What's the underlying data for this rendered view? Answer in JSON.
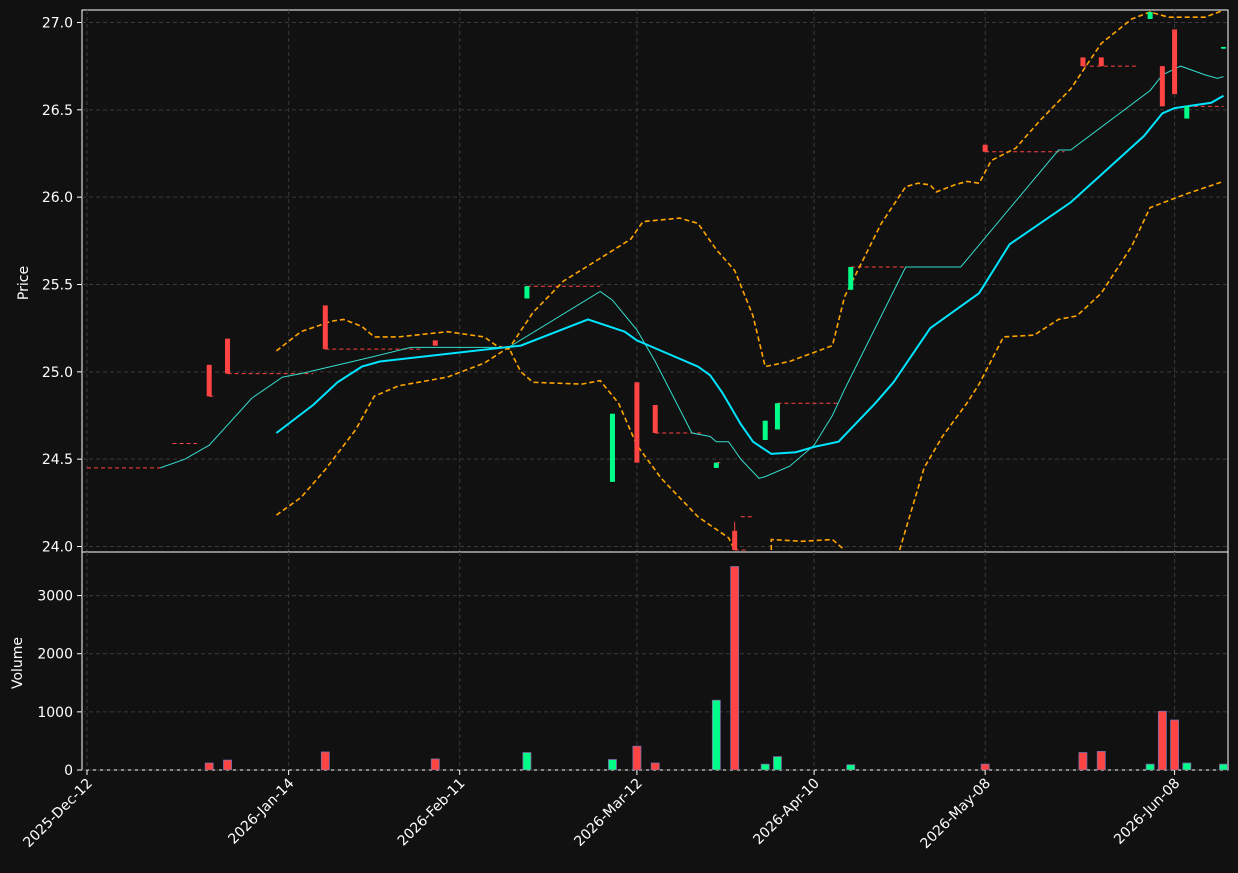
{
  "chart_data": [
    {
      "type": "candlestick",
      "ylabel": "Price",
      "ylim": [
        23.98,
        27.06
      ],
      "yticks": [
        "24.0",
        "24.5",
        "25.0",
        "25.5",
        "26.0",
        "26.5",
        "27.0"
      ],
      "ytick_values": [
        24.0,
        24.5,
        25.0,
        25.5,
        26.0,
        26.5,
        27.0
      ],
      "grid": true,
      "colors": {
        "up": "#00ff88",
        "down": "#ff4444",
        "bb": "#ffa500",
        "ma_slow": "#00e5ff",
        "ma_fast": "#33ddcc"
      },
      "candles": [
        {
          "date": "2026-Jan-01",
          "open": 25.04,
          "high": 25.04,
          "low": 24.86,
          "close": 24.86,
          "dir": "down"
        },
        {
          "date": "2026-Jan-04",
          "open": 25.19,
          "high": 25.19,
          "low": 24.99,
          "close": 24.99,
          "dir": "down"
        },
        {
          "date": "2026-Jan-20",
          "open": 25.38,
          "high": 25.38,
          "low": 25.13,
          "close": 25.13,
          "dir": "down"
        },
        {
          "date": "2026-Feb-07",
          "open": 25.18,
          "high": 25.18,
          "low": 25.15,
          "close": 25.15,
          "dir": "down"
        },
        {
          "date": "2026-Feb-22",
          "open": 25.42,
          "high": 25.49,
          "low": 25.42,
          "close": 25.49,
          "dir": "up"
        },
        {
          "date": "2026-Mar-08",
          "open": 24.37,
          "high": 24.76,
          "low": 24.37,
          "close": 24.76,
          "dir": "up"
        },
        {
          "date": "2026-Mar-12",
          "open": 24.94,
          "high": 24.94,
          "low": 24.48,
          "close": 24.48,
          "dir": "down"
        },
        {
          "date": "2026-Mar-15",
          "open": 24.81,
          "high": 24.81,
          "low": 24.65,
          "close": 24.65,
          "dir": "down"
        },
        {
          "date": "2026-Mar-25",
          "open": 24.45,
          "high": 24.48,
          "low": 24.45,
          "close": 24.48,
          "dir": "up"
        },
        {
          "date": "2026-Mar-28",
          "open": 24.09,
          "high": 24.14,
          "low": 23.98,
          "close": 23.98,
          "dir": "down"
        },
        {
          "date": "2026-Apr-02",
          "open": 24.61,
          "high": 24.72,
          "low": 24.61,
          "close": 24.72,
          "dir": "up"
        },
        {
          "date": "2026-Apr-04",
          "open": 24.67,
          "high": 24.82,
          "low": 24.67,
          "close": 24.82,
          "dir": "up"
        },
        {
          "date": "2026-Apr-16",
          "open": 25.47,
          "high": 25.6,
          "low": 25.47,
          "close": 25.6,
          "dir": "up"
        },
        {
          "date": "2026-May-08",
          "open": 26.3,
          "high": 26.3,
          "low": 26.26,
          "close": 26.26,
          "dir": "down"
        },
        {
          "date": "2026-May-24",
          "open": 26.8,
          "high": 26.8,
          "low": 26.75,
          "close": 26.75,
          "dir": "down"
        },
        {
          "date": "2026-May-27",
          "open": 26.8,
          "high": 26.8,
          "low": 26.75,
          "close": 26.75,
          "dir": "down"
        },
        {
          "date": "2026-Jun-04",
          "open": 27.02,
          "high": 27.06,
          "low": 27.02,
          "close": 27.06,
          "dir": "up"
        },
        {
          "date": "2026-Jun-06",
          "open": 26.75,
          "high": 26.75,
          "low": 26.52,
          "close": 26.52,
          "dir": "down"
        },
        {
          "date": "2026-Jun-08",
          "open": 26.96,
          "high": 26.96,
          "low": 26.59,
          "close": 26.59,
          "dir": "down"
        },
        {
          "date": "2026-Jun-10",
          "open": 26.45,
          "high": 26.52,
          "low": 26.45,
          "close": 26.52,
          "dir": "up"
        },
        {
          "date": "2026-Jun-16",
          "open": 26.85,
          "high": 26.86,
          "low": 26.85,
          "close": 26.86,
          "dir": "up"
        }
      ],
      "close_ref": [
        {
          "start": "2025-Dec-12",
          "end": "2025-Dec-24",
          "y": 24.45
        },
        {
          "start": "2025-Dec-26",
          "end": "2025-Dec-30",
          "y": 24.59
        },
        {
          "start": "2026-Jan-01",
          "end": "2026-Jan-02",
          "y": 24.86
        },
        {
          "start": "2026-Jan-04",
          "end": "2026-Jan-18",
          "y": 24.99
        },
        {
          "start": "2026-Jan-20",
          "end": "2026-Feb-05",
          "y": 25.13
        },
        {
          "start": "2026-Feb-22",
          "end": "2026-Mar-06",
          "y": 25.49
        },
        {
          "start": "2026-Mar-15",
          "end": "2026-Mar-23",
          "y": 24.65
        },
        {
          "start": "2026-Mar-25",
          "end": "2026-Mar-26",
          "y": 24.48
        },
        {
          "start": "2026-Mar-28",
          "end": "2026-Mar-30",
          "y": 23.98
        },
        {
          "start": "2026-Mar-29",
          "end": "2026-Mar-31",
          "y": 24.17
        },
        {
          "start": "2026-Apr-04",
          "end": "2026-Apr-14",
          "y": 24.82
        },
        {
          "start": "2026-Apr-16",
          "end": "2026-Apr-29",
          "y": 25.6
        },
        {
          "start": "2026-May-08",
          "end": "2026-May-21",
          "y": 26.26
        },
        {
          "start": "2026-May-24",
          "end": "2026-Jun-02",
          "y": 26.75
        },
        {
          "start": "2026-Jun-10",
          "end": "2026-Jun-16",
          "y": 26.52
        }
      ],
      "ma_fast": [
        {
          "x": "2025-Dec-24",
          "y": 24.45
        },
        {
          "x": "2025-Dec-28",
          "y": 24.5
        },
        {
          "x": "2026-Jan-01",
          "y": 24.58
        },
        {
          "x": "2026-Jan-08",
          "y": 24.85
        },
        {
          "x": "2026-Jan-13",
          "y": 24.97
        },
        {
          "x": "2026-Jan-16",
          "y": 24.99
        },
        {
          "x": "2026-Jan-27",
          "y": 25.08
        },
        {
          "x": "2026-Feb-03",
          "y": 25.14
        },
        {
          "x": "2026-Feb-19",
          "y": 25.14
        },
        {
          "x": "2026-Mar-06",
          "y": 25.46
        },
        {
          "x": "2026-Mar-08",
          "y": 25.41
        },
        {
          "x": "2026-Mar-12",
          "y": 25.24
        },
        {
          "x": "2026-Mar-15",
          "y": 25.06
        },
        {
          "x": "2026-Mar-21",
          "y": 24.65
        },
        {
          "x": "2026-Mar-24",
          "y": 24.63
        },
        {
          "x": "2026-Mar-25",
          "y": 24.6
        },
        {
          "x": "2026-Mar-27",
          "y": 24.6
        },
        {
          "x": "2026-Mar-28",
          "y": 24.55
        },
        {
          "x": "2026-Mar-29",
          "y": 24.5
        },
        {
          "x": "2026-Apr-01",
          "y": 24.39
        },
        {
          "x": "2026-Apr-02",
          "y": 24.4
        },
        {
          "x": "2026-Apr-06",
          "y": 24.46
        },
        {
          "x": "2026-Apr-10",
          "y": 24.58
        },
        {
          "x": "2026-Apr-13",
          "y": 24.75
        },
        {
          "x": "2026-Apr-15",
          "y": 24.9
        },
        {
          "x": "2026-Apr-25",
          "y": 25.6
        },
        {
          "x": "2026-May-04",
          "y": 25.6
        },
        {
          "x": "2026-May-20",
          "y": 26.27
        },
        {
          "x": "2026-May-22",
          "y": 26.27
        },
        {
          "x": "2026-Jun-04",
          "y": 26.61
        },
        {
          "x": "2026-Jun-06",
          "y": 26.7
        },
        {
          "x": "2026-Jun-09",
          "y": 26.75
        },
        {
          "x": "2026-Jun-13",
          "y": 26.7
        },
        {
          "x": "2026-Jun-15",
          "y": 26.68
        },
        {
          "x": "2026-Jun-16",
          "y": 26.69
        }
      ],
      "ma_slow": [
        {
          "x": "2026-Jan-12",
          "y": 24.65
        },
        {
          "x": "2026-Jan-18",
          "y": 24.81
        },
        {
          "x": "2026-Jan-22",
          "y": 24.94
        },
        {
          "x": "2026-Jan-26",
          "y": 25.03
        },
        {
          "x": "2026-Jan-29",
          "y": 25.06
        },
        {
          "x": "2026-Feb-21",
          "y": 25.15
        },
        {
          "x": "2026-Mar-04",
          "y": 25.3
        },
        {
          "x": "2026-Mar-10",
          "y": 25.23
        },
        {
          "x": "2026-Mar-12",
          "y": 25.18
        },
        {
          "x": "2026-Mar-22",
          "y": 25.03
        },
        {
          "x": "2026-Mar-24",
          "y": 24.98
        },
        {
          "x": "2026-Mar-26",
          "y": 24.88
        },
        {
          "x": "2026-Mar-29",
          "y": 24.7
        },
        {
          "x": "2026-Mar-31",
          "y": 24.6
        },
        {
          "x": "2026-Apr-03",
          "y": 24.53
        },
        {
          "x": "2026-Apr-07",
          "y": 24.54
        },
        {
          "x": "2026-Apr-10",
          "y": 24.57
        },
        {
          "x": "2026-Apr-14",
          "y": 24.6
        },
        {
          "x": "2026-Apr-20",
          "y": 24.82
        },
        {
          "x": "2026-Apr-23",
          "y": 24.94
        },
        {
          "x": "2026-Apr-29",
          "y": 25.25
        },
        {
          "x": "2026-May-07",
          "y": 25.45
        },
        {
          "x": "2026-May-12",
          "y": 25.73
        },
        {
          "x": "2026-May-22",
          "y": 25.97
        },
        {
          "x": "2026-Jun-03",
          "y": 26.35
        },
        {
          "x": "2026-Jun-06",
          "y": 26.48
        },
        {
          "x": "2026-Jun-08",
          "y": 26.51
        },
        {
          "x": "2026-Jun-14",
          "y": 26.54
        },
        {
          "x": "2026-Jun-16",
          "y": 26.58
        }
      ],
      "bb_upper": [
        {
          "x": "2026-Jan-12",
          "y": 25.12
        },
        {
          "x": "2026-Jan-16",
          "y": 25.23
        },
        {
          "x": "2026-Jan-21",
          "y": 25.29
        },
        {
          "x": "2026-Jan-23",
          "y": 25.3
        },
        {
          "x": "2026-Jan-26",
          "y": 25.26
        },
        {
          "x": "2026-Jan-28",
          "y": 25.2
        },
        {
          "x": "2026-Feb-01",
          "y": 25.2
        },
        {
          "x": "2026-Feb-09",
          "y": 25.23
        },
        {
          "x": "2026-Feb-15",
          "y": 25.2
        },
        {
          "x": "2026-Feb-17",
          "y": 25.15
        },
        {
          "x": "2026-Feb-19",
          "y": 25.13
        },
        {
          "x": "2026-Feb-23",
          "y": 25.34
        },
        {
          "x": "2026-Feb-28",
          "y": 25.52
        },
        {
          "x": "2026-Mar-06",
          "y": 25.65
        },
        {
          "x": "2026-Mar-11",
          "y": 25.76
        },
        {
          "x": "2026-Mar-13",
          "y": 25.86
        },
        {
          "x": "2026-Mar-19",
          "y": 25.88
        },
        {
          "x": "2026-Mar-22",
          "y": 25.85
        },
        {
          "x": "2026-Mar-25",
          "y": 25.7
        },
        {
          "x": "2026-Mar-28",
          "y": 25.58
        },
        {
          "x": "2026-Mar-31",
          "y": 25.32
        },
        {
          "x": "2026-Apr-02",
          "y": 25.03
        },
        {
          "x": "2026-Apr-06",
          "y": 25.06
        },
        {
          "x": "2026-Apr-13",
          "y": 25.15
        },
        {
          "x": "2026-Apr-15",
          "y": 25.43
        },
        {
          "x": "2026-Apr-21",
          "y": 25.85
        },
        {
          "x": "2026-Apr-25",
          "y": 26.06
        },
        {
          "x": "2026-Apr-27",
          "y": 26.08
        },
        {
          "x": "2026-Apr-29",
          "y": 26.07
        },
        {
          "x": "2026-Apr-30",
          "y": 26.03
        },
        {
          "x": "2026-May-03",
          "y": 26.07
        },
        {
          "x": "2026-May-05",
          "y": 26.09
        },
        {
          "x": "2026-May-07",
          "y": 26.08
        },
        {
          "x": "2026-May-09",
          "y": 26.21
        },
        {
          "x": "2026-May-13",
          "y": 26.28
        },
        {
          "x": "2026-May-17",
          "y": 26.44
        },
        {
          "x": "2026-May-22",
          "y": 26.62
        },
        {
          "x": "2026-May-27",
          "y": 26.88
        },
        {
          "x": "2026-Jun-01",
          "y": 27.02
        },
        {
          "x": "2026-Jun-04",
          "y": 27.06
        },
        {
          "x": "2026-Jun-07",
          "y": 27.03
        },
        {
          "x": "2026-Jun-13",
          "y": 27.03
        },
        {
          "x": "2026-Jun-16",
          "y": 27.07
        }
      ],
      "bb_lower": [
        {
          "x": "2026-Jan-12",
          "y": 24.18
        },
        {
          "x": "2026-Jan-16",
          "y": 24.28
        },
        {
          "x": "2026-Jan-20",
          "y": 24.44
        },
        {
          "x": "2026-Jan-25",
          "y": 24.67
        },
        {
          "x": "2026-Jan-28",
          "y": 24.86
        },
        {
          "x": "2026-Feb-01",
          "y": 24.92
        },
        {
          "x": "2026-Feb-09",
          "y": 24.97
        },
        {
          "x": "2026-Feb-15",
          "y": 25.05
        },
        {
          "x": "2026-Feb-19",
          "y": 25.14
        },
        {
          "x": "2026-Feb-21",
          "y": 25.0
        },
        {
          "x": "2026-Feb-23",
          "y": 24.94
        },
        {
          "x": "2026-Mar-03",
          "y": 24.93
        },
        {
          "x": "2026-Mar-06",
          "y": 24.95
        },
        {
          "x": "2026-Mar-09",
          "y": 24.82
        },
        {
          "x": "2026-Mar-12",
          "y": 24.58
        },
        {
          "x": "2026-Mar-16",
          "y": 24.39
        },
        {
          "x": "2026-Mar-22",
          "y": 24.17
        },
        {
          "x": "2026-Mar-27",
          "y": 24.05
        },
        {
          "x": "2026-Mar-28",
          "y": 23.98
        }
      ],
      "bb_lower_b": [
        {
          "x": "2026-Apr-03",
          "y": 23.98
        },
        {
          "x": "2026-Apr-03",
          "y": 24.04
        },
        {
          "x": "2026-Apr-08",
          "y": 24.03
        },
        {
          "x": "2026-Apr-13",
          "y": 24.04
        },
        {
          "x": "2026-Apr-15",
          "y": 23.98
        }
      ],
      "bb_lower_c": [
        {
          "x": "2026-Apr-24",
          "y": 23.98
        },
        {
          "x": "2026-Apr-28",
          "y": 24.45
        },
        {
          "x": "2026-May-01",
          "y": 24.63
        },
        {
          "x": "2026-May-05",
          "y": 24.82
        },
        {
          "x": "2026-May-07",
          "y": 24.93
        },
        {
          "x": "2026-May-11",
          "y": 25.2
        },
        {
          "x": "2026-May-16",
          "y": 25.21
        },
        {
          "x": "2026-May-20",
          "y": 25.3
        },
        {
          "x": "2026-May-23",
          "y": 25.32
        },
        {
          "x": "2026-May-27",
          "y": 25.45
        },
        {
          "x": "2026-Jun-01",
          "y": 25.72
        },
        {
          "x": "2026-Jun-04",
          "y": 25.94
        },
        {
          "x": "2026-Jun-10",
          "y": 26.02
        },
        {
          "x": "2026-Jun-16",
          "y": 26.09
        }
      ]
    },
    {
      "type": "bar",
      "ylabel": "Volume",
      "ylim": [
        0,
        3750
      ],
      "yticks": [
        "0",
        "1000",
        "2000",
        "3000"
      ],
      "ytick_values": [
        0,
        1000,
        2000,
        3000
      ],
      "xticks": [
        "2025-Dec-12",
        "2026-Jan-14",
        "2026-Feb-11",
        "2026-Mar-12",
        "2026-Apr-10",
        "2026-May-08",
        "2026-Jun-08"
      ],
      "bars": [
        {
          "date": "2026-Jan-01",
          "value": 120,
          "dir": "down"
        },
        {
          "date": "2026-Jan-04",
          "value": 170,
          "dir": "down"
        },
        {
          "date": "2026-Jan-20",
          "value": 310,
          "dir": "down"
        },
        {
          "date": "2026-Feb-07",
          "value": 190,
          "dir": "down"
        },
        {
          "date": "2026-Feb-22",
          "value": 300,
          "dir": "up"
        },
        {
          "date": "2026-Mar-08",
          "value": 180,
          "dir": "up"
        },
        {
          "date": "2026-Mar-12",
          "value": 410,
          "dir": "down"
        },
        {
          "date": "2026-Mar-15",
          "value": 120,
          "dir": "down"
        },
        {
          "date": "2026-Mar-25",
          "value": 1200,
          "dir": "up"
        },
        {
          "date": "2026-Mar-28",
          "value": 3500,
          "dir": "down"
        },
        {
          "date": "2026-Apr-02",
          "value": 100,
          "dir": "up"
        },
        {
          "date": "2026-Apr-04",
          "value": 230,
          "dir": "up"
        },
        {
          "date": "2026-Apr-16",
          "value": 90,
          "dir": "up"
        },
        {
          "date": "2026-May-08",
          "value": 100,
          "dir": "down"
        },
        {
          "date": "2026-May-24",
          "value": 300,
          "dir": "down"
        },
        {
          "date": "2026-May-27",
          "value": 320,
          "dir": "down"
        },
        {
          "date": "2026-Jun-04",
          "value": 100,
          "dir": "up"
        },
        {
          "date": "2026-Jun-06",
          "value": 1010,
          "dir": "down"
        },
        {
          "date": "2026-Jun-08",
          "value": 860,
          "dir": "down"
        },
        {
          "date": "2026-Jun-10",
          "value": 120,
          "dir": "up"
        },
        {
          "date": "2026-Jun-16",
          "value": 100,
          "dir": "up"
        }
      ]
    }
  ]
}
